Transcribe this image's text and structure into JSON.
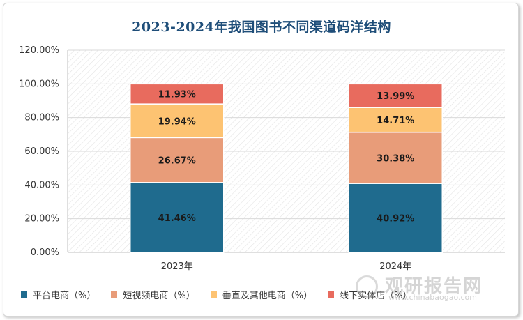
{
  "title": "2023-2024年我国图书不同渠道码洋结构",
  "chart_data": {
    "type": "bar",
    "stacked": true,
    "categories": [
      "2023年",
      "2024年"
    ],
    "series": [
      {
        "name": "平台电商（%）",
        "values": [
          41.46,
          40.92
        ],
        "labels": [
          "41.46%",
          "40.92%"
        ],
        "color": "#1f6b8e",
        "label_color": "#1a1a1a"
      },
      {
        "name": "短视频电商（%）",
        "values": [
          26.67,
          30.38
        ],
        "labels": [
          "26.67%",
          "30.38%"
        ],
        "color": "#e89c79",
        "label_color": "#1a1a1a"
      },
      {
        "name": "垂直及其他电商（%）",
        "values": [
          19.94,
          14.71
        ],
        "labels": [
          "19.94%",
          "14.71%"
        ],
        "color": "#fdc372",
        "label_color": "#1a1a1a"
      },
      {
        "name": "线下实体店（%）",
        "values": [
          11.93,
          13.99
        ],
        "labels": [
          "11.93%",
          "13.99%"
        ],
        "color": "#e86b5e",
        "label_color": "#1a1a1a"
      }
    ],
    "y_ticks": [
      "0.00%",
      "20.00%",
      "40.00%",
      "60.00%",
      "80.00%",
      "100.00%",
      "120.00%"
    ],
    "ylim": [
      0,
      120
    ],
    "grid": true,
    "legend_position": "bottom"
  },
  "watermark": {
    "text": "观研报告网",
    "subtext": "www.chinabaogao.com"
  }
}
